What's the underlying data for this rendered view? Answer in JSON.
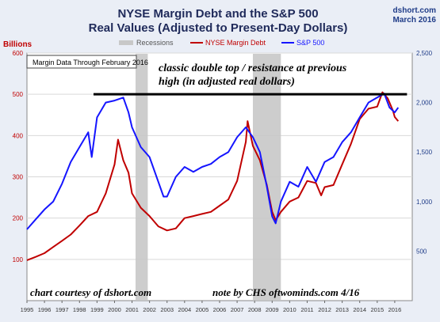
{
  "title_line1": "NYSE Margin Debt and the S&P 500",
  "title_line2": "Real Values (Adjusted to Present-Day Dollars)",
  "source": "dshort.com",
  "source_date": "March 2016",
  "left_axis_title": "Billions",
  "data_box": "Margin Data Through February 2016",
  "annotation_line1": "classic double top / resistance at previous",
  "annotation_line2": "high (in adjusted real dollars)",
  "credit_left": "chart courtesy of dshort.com",
  "credit_right": "note by CHS   oftwominds.com  4/16",
  "colors": {
    "plot_bg": "#eaeef6",
    "margin_debt": "#c00000",
    "sp500": "#1515ff",
    "recession": "#c8c8c8",
    "left_axis_text": "#c00000",
    "right_axis_text": "#1f3c88",
    "resistance_line": "#000000"
  },
  "chart_data": {
    "type": "line",
    "legend": [
      "Recessions",
      "NYSE Margin Debt",
      "S&P 500"
    ],
    "legend_position": "top",
    "x_ticks": [
      "1995",
      "1996",
      "1997",
      "1998",
      "1999",
      "2000",
      "2001",
      "2002",
      "2003",
      "2004",
      "2005",
      "2006",
      "2007",
      "2008",
      "2009",
      "2010",
      "2011",
      "2012",
      "2013",
      "2014",
      "2015",
      "2016"
    ],
    "y_left": {
      "label": "Billions",
      "range": [
        0,
        600
      ],
      "ticks": [
        100,
        200,
        300,
        400,
        500,
        600
      ]
    },
    "y_right": {
      "range": [
        0,
        2500
      ],
      "ticks": [
        500,
        1000,
        1500,
        2000,
        2500
      ]
    },
    "recessions": [
      [
        2001.2,
        2001.9
      ],
      [
        2007.9,
        2009.5
      ]
    ],
    "resistance_level_billions": 500,
    "resistance_span": [
      1998.8,
      2016.7
    ],
    "series": [
      {
        "name": "NYSE Margin Debt",
        "axis": "left",
        "points": [
          [
            1995.0,
            98
          ],
          [
            1995.5,
            106
          ],
          [
            1996.0,
            115
          ],
          [
            1996.5,
            130
          ],
          [
            1997.0,
            145
          ],
          [
            1997.5,
            160
          ],
          [
            1998.0,
            182
          ],
          [
            1998.5,
            205
          ],
          [
            1999.0,
            215
          ],
          [
            1999.5,
            260
          ],
          [
            2000.0,
            330
          ],
          [
            2000.2,
            390
          ],
          [
            2000.5,
            340
          ],
          [
            2000.8,
            310
          ],
          [
            2001.0,
            260
          ],
          [
            2001.5,
            225
          ],
          [
            2002.0,
            205
          ],
          [
            2002.5,
            180
          ],
          [
            2003.0,
            170
          ],
          [
            2003.5,
            175
          ],
          [
            2004.0,
            200
          ],
          [
            2004.5,
            205
          ],
          [
            2005.0,
            210
          ],
          [
            2005.5,
            215
          ],
          [
            2006.0,
            230
          ],
          [
            2006.5,
            245
          ],
          [
            2007.0,
            290
          ],
          [
            2007.5,
            385
          ],
          [
            2007.6,
            435
          ],
          [
            2007.9,
            375
          ],
          [
            2008.3,
            340
          ],
          [
            2008.7,
            280
          ],
          [
            2009.0,
            215
          ],
          [
            2009.2,
            195
          ],
          [
            2009.5,
            215
          ],
          [
            2010.0,
            240
          ],
          [
            2010.5,
            250
          ],
          [
            2011.0,
            290
          ],
          [
            2011.5,
            285
          ],
          [
            2011.8,
            255
          ],
          [
            2012.0,
            275
          ],
          [
            2012.5,
            280
          ],
          [
            2013.0,
            330
          ],
          [
            2013.5,
            380
          ],
          [
            2014.0,
            440
          ],
          [
            2014.5,
            465
          ],
          [
            2015.0,
            470
          ],
          [
            2015.3,
            505
          ],
          [
            2015.6,
            490
          ],
          [
            2015.9,
            460
          ],
          [
            2016.0,
            445
          ],
          [
            2016.2,
            435
          ]
        ]
      },
      {
        "name": "S&P 500",
        "axis": "right",
        "points": [
          [
            1995.0,
            720
          ],
          [
            1995.5,
            820
          ],
          [
            1996.0,
            920
          ],
          [
            1996.5,
            1000
          ],
          [
            1997.0,
            1180
          ],
          [
            1997.5,
            1400
          ],
          [
            1998.0,
            1550
          ],
          [
            1998.5,
            1700
          ],
          [
            1998.7,
            1450
          ],
          [
            1999.0,
            1850
          ],
          [
            1999.5,
            2000
          ],
          [
            2000.0,
            2020
          ],
          [
            2000.5,
            2050
          ],
          [
            2000.8,
            1900
          ],
          [
            2001.0,
            1750
          ],
          [
            2001.5,
            1550
          ],
          [
            2002.0,
            1450
          ],
          [
            2002.5,
            1200
          ],
          [
            2002.8,
            1050
          ],
          [
            2003.0,
            1050
          ],
          [
            2003.5,
            1250
          ],
          [
            2004.0,
            1350
          ],
          [
            2004.5,
            1300
          ],
          [
            2005.0,
            1350
          ],
          [
            2005.5,
            1380
          ],
          [
            2006.0,
            1450
          ],
          [
            2006.5,
            1500
          ],
          [
            2007.0,
            1650
          ],
          [
            2007.5,
            1750
          ],
          [
            2007.9,
            1650
          ],
          [
            2008.3,
            1500
          ],
          [
            2008.7,
            1150
          ],
          [
            2009.0,
            850
          ],
          [
            2009.2,
            780
          ],
          [
            2009.5,
            1000
          ],
          [
            2010.0,
            1200
          ],
          [
            2010.5,
            1150
          ],
          [
            2011.0,
            1350
          ],
          [
            2011.5,
            1200
          ],
          [
            2012.0,
            1400
          ],
          [
            2012.5,
            1450
          ],
          [
            2013.0,
            1600
          ],
          [
            2013.5,
            1700
          ],
          [
            2014.0,
            1850
          ],
          [
            2014.5,
            2000
          ],
          [
            2015.0,
            2050
          ],
          [
            2015.4,
            2090
          ],
          [
            2015.7,
            1950
          ],
          [
            2016.0,
            1900
          ],
          [
            2016.2,
            1950
          ]
        ]
      }
    ]
  }
}
